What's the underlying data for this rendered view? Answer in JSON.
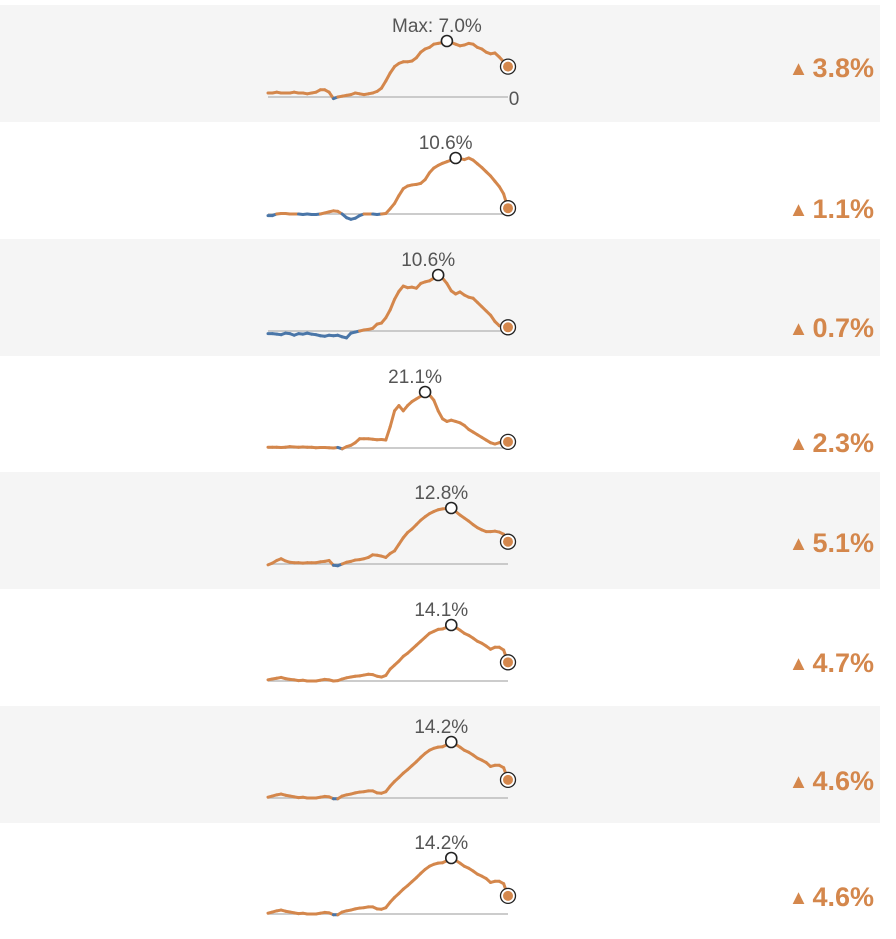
{
  "colors": {
    "positive": "#d4874c",
    "negative": "#4a76a8",
    "baseline": "#bbbbbb",
    "shaded_row": "#f5f5f5",
    "label": "#555555"
  },
  "up_arrow_icon": "▲",
  "zero_label": "0",
  "chart_data": [
    {
      "type": "line",
      "max_label": "Max: 7.0%",
      "max": 7.0,
      "change_label": "3.8%",
      "values": [
        0.5,
        0.5,
        0.6,
        0.5,
        0.5,
        0.5,
        0.6,
        0.5,
        0.5,
        0.4,
        0.5,
        0.6,
        0.9,
        0.9,
        0.6,
        -0.2,
        0.0,
        0.1,
        0.2,
        0.3,
        0.5,
        0.4,
        0.3,
        0.4,
        0.5,
        0.7,
        1.1,
        2.0,
        3.0,
        3.8,
        4.2,
        4.4,
        4.4,
        4.5,
        4.9,
        5.6,
        6.0,
        6.2,
        6.6,
        6.7,
        6.8,
        7.0,
        6.8,
        6.6,
        6.4,
        6.5,
        6.7,
        6.6,
        6.2,
        6.0,
        5.6,
        5.4,
        5.5,
        5.0,
        4.4,
        3.8
      ]
    },
    {
      "type": "line",
      "max_label": "10.6%",
      "max": 10.6,
      "change_label": "1.1%",
      "values": [
        -0.3,
        -0.3,
        0.0,
        0.1,
        0.1,
        0.0,
        0.0,
        0.0,
        -0.1,
        0.0,
        -0.1,
        -0.1,
        0.0,
        0.2,
        0.4,
        0.6,
        0.5,
        0.0,
        -0.7,
        -1.0,
        -0.8,
        -0.3,
        0.0,
        0.0,
        0.0,
        -0.1,
        0.0,
        0.1,
        1.0,
        2.0,
        3.5,
        4.8,
        5.3,
        5.5,
        5.6,
        5.8,
        6.5,
        7.8,
        8.7,
        9.2,
        9.6,
        9.9,
        10.2,
        10.6,
        10.5,
        10.3,
        10.6,
        10.2,
        9.5,
        8.8,
        8.0,
        7.2,
        6.2,
        5.2,
        3.8,
        1.1
      ]
    },
    {
      "type": "line",
      "max_label": "10.6%",
      "max": 10.6,
      "change_label": "0.7%",
      "values": [
        -0.5,
        -0.5,
        -0.6,
        -0.7,
        -0.4,
        -0.5,
        -0.8,
        -0.5,
        -0.6,
        -0.4,
        -0.6,
        -0.7,
        -0.9,
        -1.0,
        -0.8,
        -0.9,
        -0.8,
        -1.1,
        -1.3,
        -0.4,
        -0.2,
        0.0,
        0.2,
        0.3,
        0.5,
        1.3,
        1.5,
        2.5,
        4.0,
        6.0,
        7.5,
        8.5,
        8.2,
        8.3,
        8.1,
        9.0,
        9.3,
        9.5,
        10.0,
        10.6,
        10.0,
        9.0,
        7.6,
        7.0,
        7.4,
        6.8,
        6.4,
        6.2,
        5.4,
        4.6,
        3.8,
        3.0,
        1.8,
        1.0,
        0.8,
        0.7
      ]
    },
    {
      "type": "line",
      "max_label": "21.1%",
      "max": 21.1,
      "change_label": "2.3%",
      "values": [
        0.3,
        0.3,
        0.3,
        0.2,
        0.3,
        0.5,
        0.4,
        0.3,
        0.4,
        0.3,
        0.3,
        0.1,
        0.2,
        0.2,
        0.1,
        0.0,
        0.2,
        -0.3,
        0.5,
        1.0,
        2.0,
        3.5,
        3.5,
        3.5,
        3.3,
        3.1,
        3.2,
        3.0,
        8.0,
        14.0,
        16.0,
        14.0,
        16.0,
        17.5,
        18.5,
        19.5,
        21.1,
        20.0,
        18.0,
        14.0,
        11.0,
        10.0,
        10.5,
        10.0,
        9.5,
        8.5,
        7.0,
        6.0,
        5.0,
        4.0,
        3.0,
        2.0,
        1.5,
        2.0,
        2.5,
        2.3
      ]
    },
    {
      "type": "line",
      "max_label": "12.8%",
      "max": 12.8,
      "change_label": "5.1%",
      "values": [
        -0.2,
        0.2,
        0.8,
        1.2,
        0.7,
        0.4,
        0.3,
        0.3,
        0.2,
        0.3,
        0.3,
        0.3,
        0.5,
        0.6,
        0.8,
        -0.3,
        -0.4,
        0.0,
        0.4,
        0.6,
        0.9,
        1.0,
        1.2,
        1.5,
        2.1,
        2.0,
        1.8,
        1.5,
        2.4,
        3.0,
        4.5,
        6.0,
        7.2,
        8.0,
        9.0,
        10.0,
        10.8,
        11.5,
        12.0,
        12.4,
        12.6,
        12.7,
        12.8,
        12.0,
        11.2,
        10.5,
        9.8,
        9.0,
        8.3,
        7.8,
        7.4,
        7.4,
        7.5,
        7.3,
        6.8,
        5.1
      ]
    },
    {
      "type": "line",
      "max_label": "14.1%",
      "max": 14.1,
      "change_label": "4.7%",
      "values": [
        0.3,
        0.5,
        0.7,
        0.9,
        0.6,
        0.4,
        0.3,
        0.1,
        0.2,
        0.0,
        0.0,
        0.0,
        0.2,
        0.4,
        0.3,
        0.0,
        0.1,
        0.5,
        0.8,
        1.0,
        1.2,
        1.3,
        1.5,
        1.7,
        1.6,
        1.2,
        1.0,
        1.4,
        3.0,
        4.0,
        5.0,
        6.2,
        7.0,
        8.0,
        9.0,
        10.0,
        11.0,
        12.0,
        12.5,
        13.0,
        13.1,
        13.5,
        14.1,
        13.5,
        12.8,
        12.0,
        11.5,
        10.8,
        10.0,
        9.5,
        8.8,
        8.0,
        8.5,
        8.5,
        7.8,
        4.7
      ]
    },
    {
      "type": "line",
      "max_label": "14.2%",
      "max": 14.2,
      "change_label": "4.6%",
      "values": [
        0.2,
        0.5,
        0.8,
        1.0,
        0.7,
        0.5,
        0.3,
        0.1,
        0.2,
        0.0,
        0.0,
        0.0,
        0.2,
        0.4,
        0.3,
        -0.2,
        -0.2,
        0.5,
        0.8,
        1.0,
        1.3,
        1.5,
        1.6,
        1.8,
        1.8,
        1.3,
        1.2,
        1.6,
        3.0,
        4.2,
        5.2,
        6.3,
        7.2,
        8.2,
        9.2,
        10.3,
        11.3,
        12.1,
        12.6,
        12.9,
        13.0,
        13.5,
        14.2,
        13.6,
        12.9,
        12.1,
        11.6,
        10.9,
        10.1,
        9.6,
        9.0,
        8.0,
        8.3,
        8.3,
        7.7,
        4.6
      ]
    },
    {
      "type": "line",
      "max_label": "14.2%",
      "max": 14.2,
      "change_label": "4.6%",
      "values": [
        0.2,
        0.5,
        0.8,
        1.0,
        0.7,
        0.5,
        0.3,
        0.1,
        0.2,
        0.0,
        0.0,
        0.0,
        0.2,
        0.4,
        0.3,
        -0.2,
        -0.2,
        0.5,
        0.8,
        1.0,
        1.3,
        1.5,
        1.6,
        1.8,
        1.8,
        1.3,
        1.2,
        1.6,
        3.0,
        4.2,
        5.2,
        6.3,
        7.2,
        8.2,
        9.2,
        10.3,
        11.3,
        12.1,
        12.6,
        12.9,
        13.0,
        13.5,
        14.2,
        13.6,
        12.9,
        12.1,
        11.6,
        10.9,
        10.1,
        9.6,
        9.0,
        8.0,
        8.3,
        8.3,
        7.7,
        4.6
      ]
    }
  ]
}
